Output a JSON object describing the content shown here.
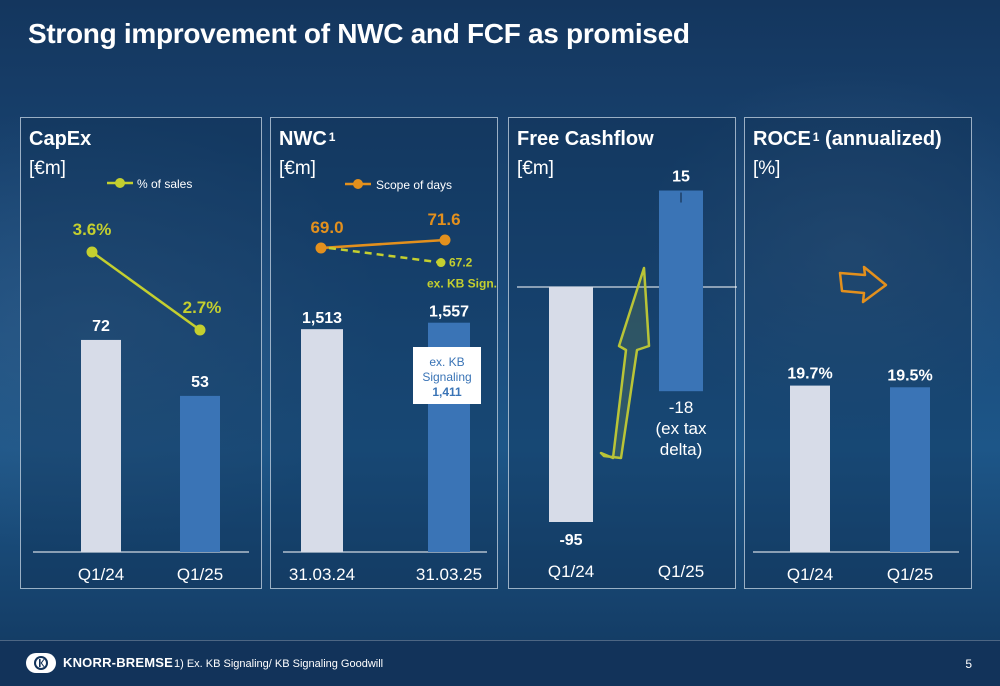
{
  "slide": {
    "title": "Strong improvement of NWC and FCF as promised",
    "footnote": "1) Ex. KB Signaling/ KB Signaling Goodwill",
    "page_number": "5",
    "logo_text": "KNORR-BREMSE"
  },
  "colors": {
    "bar_prior": "#d7dce8",
    "bar_current": "#3a74b6",
    "capex_line": "#c4cf2f",
    "nwc_line": "#e3901d",
    "nwc_dashed": "#c4cf2f",
    "arrow_outline": "#b9c437",
    "roce_arrow": "#e3901d"
  },
  "chart_data": [
    {
      "type": "bar",
      "title": "CapEx",
      "unit": "[€m]",
      "categories": [
        "Q1/24",
        "Q1/25"
      ],
      "values": [
        72,
        53
      ],
      "value_labels": [
        "72",
        "53"
      ],
      "ylim": [
        0,
        110
      ],
      "line_series": {
        "name": "% of sales",
        "values": [
          3.6,
          2.7
        ],
        "labels": [
          "3.6%",
          "2.7%"
        ]
      }
    },
    {
      "type": "bar",
      "title": "NWC",
      "title_sup": "1",
      "unit": "[€m]",
      "categories": [
        "31.03.24",
        "31.03.25"
      ],
      "values": [
        1513,
        1557
      ],
      "value_labels": [
        "1,513",
        "1,557"
      ],
      "ylim": [
        0,
        2200
      ],
      "line_series": {
        "name": "Scope of days",
        "values": [
          69.0,
          71.6
        ],
        "labels": [
          "69.0",
          "71.6"
        ]
      },
      "dashed_series": {
        "values": [
          69.0,
          67.2
        ],
        "end_label": "67.2",
        "caption": "ex. KB Sign."
      },
      "callout": {
        "line1": "ex. KB",
        "line2": "Signaling",
        "value": "1,411",
        "value_num": 1411
      }
    },
    {
      "type": "bar",
      "title": "Free Cashflow",
      "unit": "[€m]",
      "categories": [
        "Q1/24",
        "Q1/25"
      ],
      "values": [
        -95,
        15
      ],
      "value_labels": [
        "-95",
        "15"
      ],
      "ylim": [
        -110,
        30
      ],
      "extra_bar": {
        "from": 0,
        "to": -18,
        "label_lines": [
          "-18",
          "(ex tax",
          "delta)"
        ]
      }
    },
    {
      "type": "bar",
      "title": "ROCE",
      "title_sup": "1",
      "title_suffix": "(annualized)",
      "unit": "[%]",
      "categories": [
        "Q1/24",
        "Q1/25"
      ],
      "values": [
        19.7,
        19.5
      ],
      "value_labels": [
        "19.7%",
        "19.5%"
      ],
      "ylim": [
        0,
        28
      ]
    }
  ]
}
